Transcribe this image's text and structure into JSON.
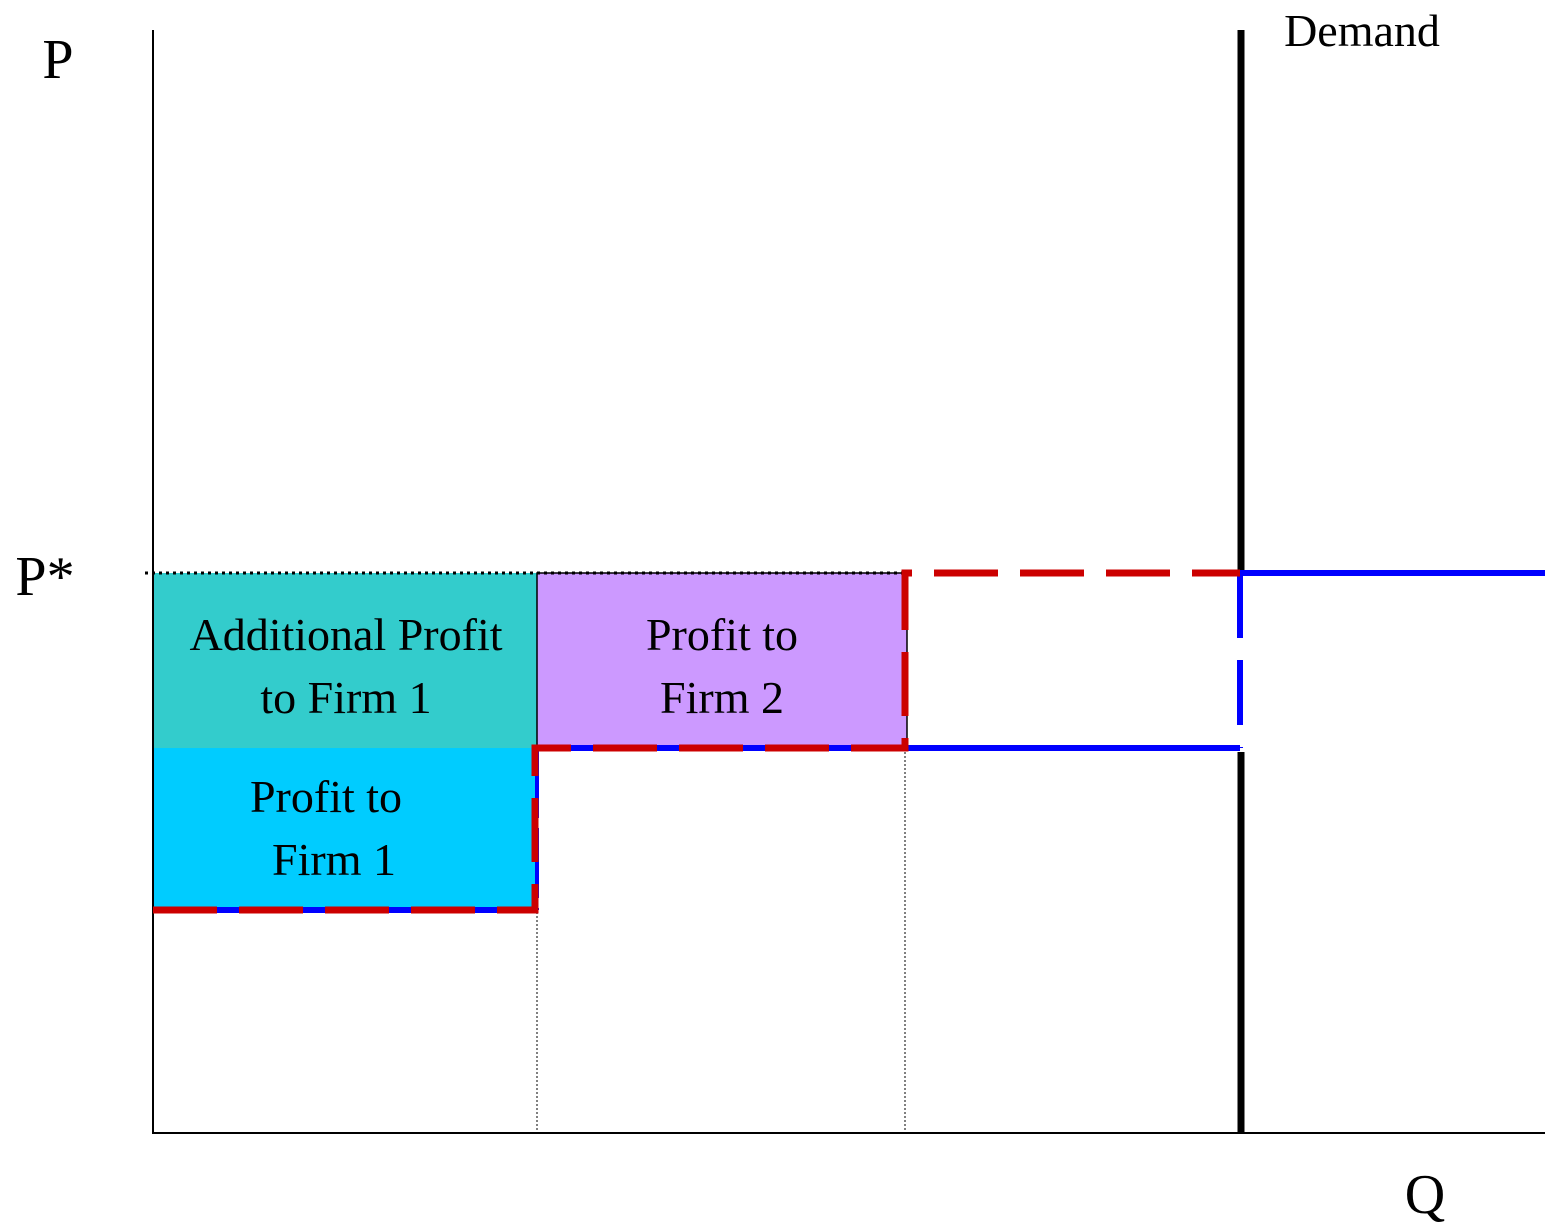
{
  "axes": {
    "y_label": "P",
    "x_label": "Q",
    "price_label": "P*"
  },
  "curves": {
    "demand": "Demand"
  },
  "regions": [
    {
      "lines": [
        "Additional Profit",
        "to Firm 1"
      ]
    },
    {
      "lines": [
        "Profit to",
        "Firm 2"
      ]
    },
    {
      "lines": [
        "Profit to",
        "Firm 1"
      ]
    }
  ]
}
